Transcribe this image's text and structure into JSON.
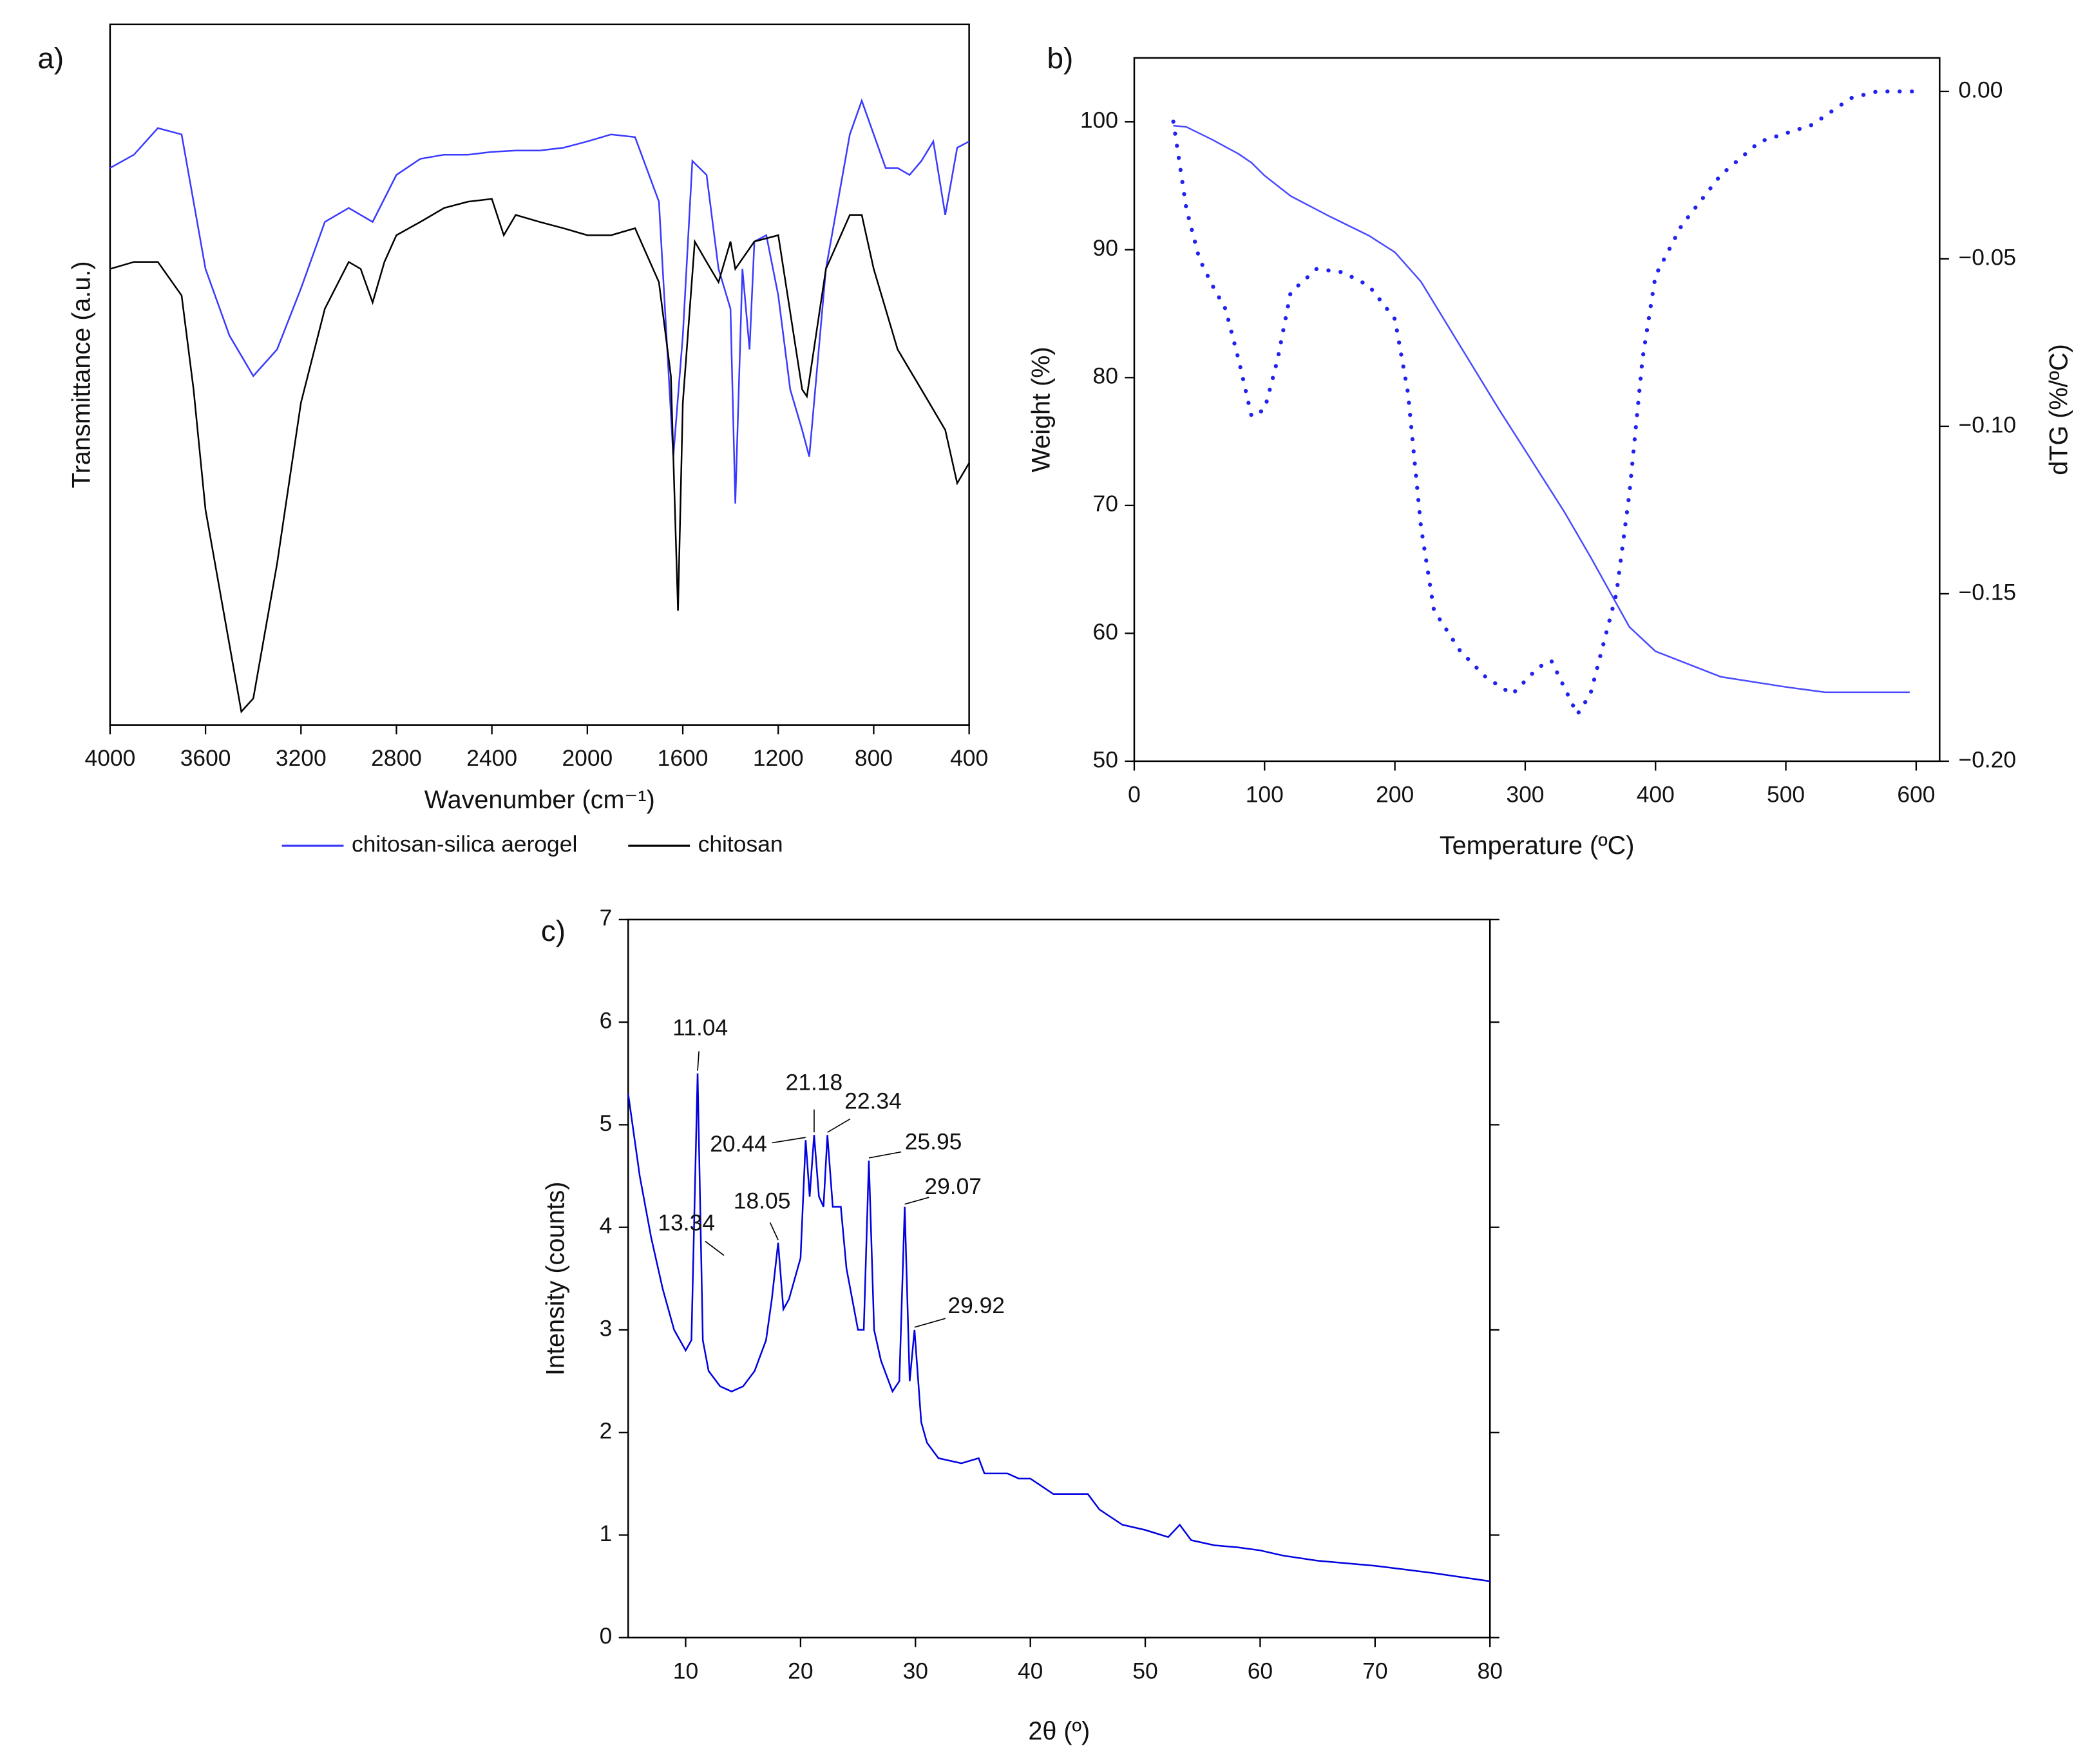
{
  "chart_data": [
    {
      "type": "line",
      "panel_label": "a)",
      "x_label": "Wavenumber (cm⁻¹)",
      "y_label": "Transmittance (a.u.)",
      "xlim": [
        4000,
        400
      ],
      "xticks": [
        4000,
        3600,
        3200,
        2800,
        2400,
        2000,
        1600,
        1200,
        800,
        400
      ],
      "ylim": [
        0,
        100
      ],
      "legend": "bottom",
      "series": [
        {
          "name": "chitosan-silica aerogel",
          "color": "#3a3aff",
          "x": [
            4000,
            3900,
            3800,
            3700,
            3650,
            3600,
            3500,
            3400,
            3300,
            3200,
            3100,
            3000,
            2900,
            2800,
            2700,
            2600,
            2500,
            2400,
            2300,
            2200,
            2100,
            2000,
            1900,
            1800,
            1700,
            1640,
            1600,
            1560,
            1500,
            1450,
            1400,
            1380,
            1350,
            1320,
            1300,
            1250,
            1200,
            1150,
            1100,
            1070,
            1000,
            950,
            900,
            850,
            800,
            750,
            700,
            650,
            600,
            550,
            500,
            450,
            400
          ],
          "values": [
            79.5,
            81.4,
            85.2,
            84.3,
            74.7,
            65.1,
            55.6,
            49.8,
            53.6,
            62.3,
            71.8,
            73.8,
            71.8,
            78.5,
            80.8,
            81.4,
            81.4,
            81.8,
            82.0,
            82.0,
            82.4,
            83.3,
            84.3,
            83.9,
            74.7,
            38.3,
            55.6,
            80.5,
            78.5,
            65.1,
            59.4,
            31.6,
            65.1,
            53.6,
            69.0,
            69.9,
            61.3,
            47.9,
            42.1,
            38.3,
            65.1,
            74.7,
            84.3,
            89.1,
            84.3,
            79.5,
            79.5,
            78.5,
            80.5,
            83.3,
            72.8,
            82.4,
            83.3
          ]
        },
        {
          "name": "chitosan",
          "color": "#000000",
          "x": [
            4000,
            3900,
            3800,
            3700,
            3650,
            3600,
            3500,
            3450,
            3400,
            3300,
            3200,
            3100,
            3000,
            2950,
            2900,
            2850,
            2800,
            2700,
            2600,
            2500,
            2400,
            2350,
            2300,
            2200,
            2100,
            2000,
            1900,
            1800,
            1700,
            1650,
            1620,
            1600,
            1550,
            1500,
            1450,
            1400,
            1380,
            1300,
            1200,
            1100,
            1080,
            1000,
            900,
            850,
            800,
            700,
            600,
            500,
            450,
            400
          ],
          "values": [
            65.1,
            66.1,
            66.1,
            61.3,
            47.9,
            30.7,
            11.5,
            1.9,
            3.8,
            23.0,
            46.0,
            59.4,
            66.1,
            65.1,
            60.3,
            66.1,
            69.9,
            71.8,
            73.8,
            74.7,
            75.1,
            69.9,
            72.8,
            71.8,
            70.9,
            69.9,
            69.9,
            70.9,
            63.2,
            49.8,
            16.3,
            46.0,
            69.0,
            66.1,
            63.2,
            69.0,
            65.1,
            69.0,
            69.9,
            47.9,
            46.9,
            65.1,
            72.8,
            72.8,
            65.1,
            53.6,
            47.9,
            42.1,
            34.5,
            37.4
          ]
        }
      ]
    },
    {
      "type": "line",
      "panel_label": "b)",
      "x_label": "Temperature (ºC)",
      "y_label": "Weight (%)",
      "y2_label": "dTG (%/ºC)",
      "xlim": [
        0,
        618
      ],
      "xticks": [
        0,
        100,
        200,
        300,
        400,
        500,
        600
      ],
      "ylim": [
        50,
        105
      ],
      "yticks": [
        50,
        60,
        70,
        80,
        90,
        100
      ],
      "y2lim": [
        -0.2,
        0.01
      ],
      "y2ticks": [
        {
          "value": 0,
          "label": "0.00"
        },
        {
          "value": -0.05,
          "label": "−0.05"
        },
        {
          "value": -0.1,
          "label": "−0.10"
        },
        {
          "value": -0.15,
          "label": "−0.15"
        },
        {
          "value": -0.2,
          "label": "−0.20"
        }
      ],
      "series": [
        {
          "color": "#4a4aff",
          "line_style": "solid",
          "x": [
            30,
            40,
            60,
            80,
            90,
            100,
            120,
            150,
            180,
            200,
            220,
            250,
            280,
            300,
            330,
            350,
            380,
            400,
            450,
            500,
            530,
            595
          ],
          "values": [
            99.7,
            99.6,
            98.6,
            97.5,
            96.8,
            95.8,
            94.2,
            92.6,
            91.1,
            89.8,
            87.5,
            82.5,
            77.5,
            74.3,
            69.5,
            66.0,
            60.5,
            58.6,
            56.6,
            55.8,
            55.4,
            55.4
          ]
        },
        {
          "color": "#2222ee",
          "line_style": "dotted",
          "axis": "y2",
          "x": [
            30,
            40,
            50,
            60,
            70,
            80,
            90,
            100,
            110,
            120,
            140,
            160,
            180,
            200,
            210,
            220,
            230,
            250,
            270,
            290,
            310,
            320,
            340,
            350,
            360,
            370,
            380,
            390,
            400,
            420,
            450,
            480,
            520,
            550,
            570,
            600
          ],
          "values": [
            -0.009,
            -0.035,
            -0.05,
            -0.058,
            -0.065,
            -0.08,
            -0.097,
            -0.095,
            -0.08,
            -0.06,
            -0.053,
            -0.054,
            -0.058,
            -0.068,
            -0.09,
            -0.13,
            -0.155,
            -0.167,
            -0.175,
            -0.18,
            -0.172,
            -0.17,
            -0.186,
            -0.18,
            -0.165,
            -0.15,
            -0.12,
            -0.08,
            -0.055,
            -0.04,
            -0.025,
            -0.015,
            -0.01,
            -0.002,
            0,
            0
          ]
        }
      ]
    },
    {
      "type": "line",
      "panel_label": "c)",
      "x_label": "2θ (º)",
      "y_label": "Intensity (counts)",
      "xlim": [
        5,
        80
      ],
      "xticks": [
        10,
        20,
        30,
        40,
        50,
        60,
        70,
        80
      ],
      "ylim": [
        0,
        7
      ],
      "yticks": [
        0,
        1,
        2,
        3,
        4,
        5,
        6,
        7
      ],
      "series": [
        {
          "color": "#0000e0",
          "x": [
            5,
            6,
            7,
            8,
            9,
            10,
            10.5,
            11.04,
            11.5,
            12,
            13,
            14,
            15,
            16,
            17,
            17.5,
            18.05,
            18.5,
            19,
            20,
            20.44,
            20.8,
            21.18,
            21.6,
            22,
            22.34,
            22.8,
            23.5,
            24,
            25,
            25.5,
            25.95,
            26.4,
            27,
            28,
            28.6,
            29.07,
            29.5,
            29.92,
            30.5,
            31,
            32,
            34,
            35.5,
            36,
            38,
            39,
            40,
            42,
            44,
            45,
            46,
            48,
            50,
            52,
            53,
            54,
            56,
            58,
            60,
            62,
            65,
            70,
            75,
            80
          ],
          "values": [
            5.3,
            4.5,
            3.9,
            3.4,
            3.0,
            2.8,
            2.9,
            5.5,
            2.9,
            2.6,
            2.45,
            2.4,
            2.45,
            2.6,
            2.9,
            3.3,
            3.85,
            3.2,
            3.3,
            3.7,
            4.85,
            4.3,
            4.9,
            4.3,
            4.2,
            4.9,
            4.2,
            4.2,
            3.6,
            3.0,
            3.0,
            4.65,
            3.0,
            2.7,
            2.4,
            2.5,
            4.2,
            2.5,
            3.0,
            2.1,
            1.9,
            1.75,
            1.7,
            1.75,
            1.6,
            1.6,
            1.55,
            1.55,
            1.4,
            1.4,
            1.4,
            1.25,
            1.1,
            1.05,
            0.98,
            1.1,
            0.95,
            0.9,
            0.88,
            0.85,
            0.8,
            0.75,
            0.7,
            0.63,
            0.55
          ]
        }
      ],
      "annotations": [
        {
          "text": "11.04",
          "x": 11.04,
          "y": 5.5
        },
        {
          "text": "13.34",
          "x": 13.34,
          "y": 3.7
        },
        {
          "text": "18.05",
          "x": 18.05,
          "y": 3.85
        },
        {
          "text": "20.44",
          "x": 20.44,
          "y": 4.85
        },
        {
          "text": "21.18",
          "x": 21.18,
          "y": 4.9
        },
        {
          "text": "22.34",
          "x": 22.34,
          "y": 4.9
        },
        {
          "text": "25.95",
          "x": 25.95,
          "y": 4.65
        },
        {
          "text": "29.07",
          "x": 29.07,
          "y": 4.2
        },
        {
          "text": "29.92",
          "x": 29.92,
          "y": 3.0
        }
      ]
    }
  ]
}
